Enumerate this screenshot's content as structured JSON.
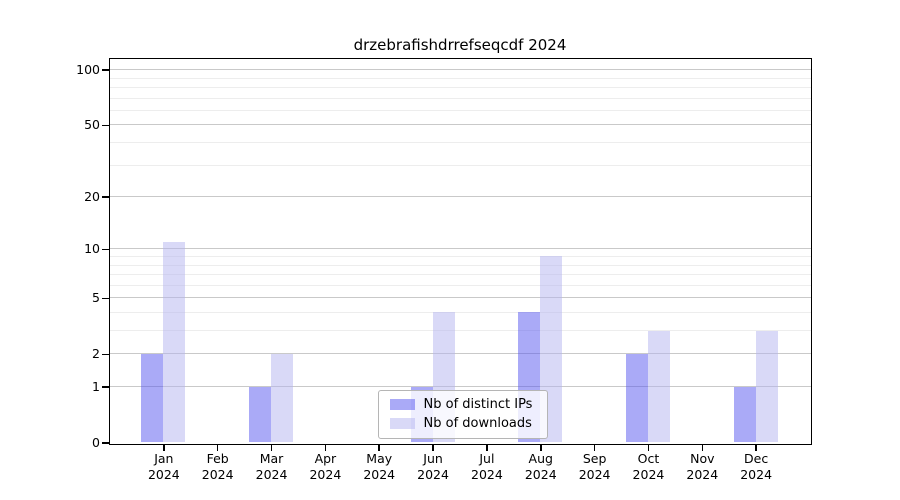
{
  "chart_data": {
    "type": "bar",
    "title": "drzebrafishdrrefseqcdf 2024",
    "categories": [
      "Jan",
      "Feb",
      "Mar",
      "Apr",
      "May",
      "Jun",
      "Jul",
      "Aug",
      "Sep",
      "Oct",
      "Nov",
      "Dec"
    ],
    "category_year": "2024",
    "series": [
      {
        "name": "Nb of distinct IPs",
        "color": "#5555EF80",
        "values": [
          2,
          0,
          1,
          0,
          0,
          1,
          0,
          4,
          0,
          2,
          0,
          1
        ]
      },
      {
        "name": "Nb of downloads",
        "color": "#B3B3EF80",
        "values": [
          11,
          0,
          2,
          0,
          0,
          4,
          0,
          9,
          0,
          3,
          0,
          3
        ]
      }
    ],
    "xlabel": "",
    "ylabel": "",
    "yscale": "log1p",
    "ylim": [
      0,
      115
    ],
    "yticks_major": [
      100,
      50,
      20,
      10,
      5,
      2,
      1,
      0
    ],
    "yticks_minor": [
      90,
      80,
      70,
      60,
      40,
      30,
      9,
      8,
      7,
      6,
      4,
      3
    ],
    "grid": true,
    "legend_position": "lower center",
    "colors": {
      "grid_major": "#c9c9c9",
      "grid_minor": "#ededed",
      "axis": "#000000",
      "background": "#ffffff"
    }
  }
}
